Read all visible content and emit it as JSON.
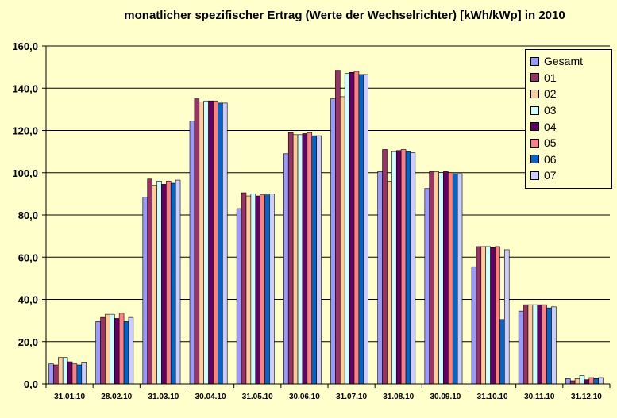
{
  "chart_data": {
    "type": "bar",
    "title": "monatlicher spezifischer Ertrag (Werte der Wechselrichter) [kWh/kWp] in 2010",
    "xlabel": "",
    "ylabel": "",
    "ylim": [
      0,
      160
    ],
    "yticks": [
      "0,0",
      "20,0",
      "40,0",
      "60,0",
      "80,0",
      "100,0",
      "120,0",
      "140,0",
      "160,0"
    ],
    "grid": true,
    "legend_position": "top-right",
    "categories": [
      "31.01.10",
      "28.02.10",
      "31.03.10",
      "30.04.10",
      "31.05.10",
      "30.06.10",
      "31.07.10",
      "31.08.10",
      "30.09.10",
      "31.10.10",
      "30.11.10",
      "31.12.10"
    ],
    "series": [
      {
        "name": "Gesamt",
        "color": "#9999ff",
        "values": [
          9.5,
          29.5,
          88.5,
          124.5,
          83,
          109,
          135,
          100.5,
          92.5,
          55.5,
          34.5,
          2.5
        ]
      },
      {
        "name": "01",
        "color": "#993366",
        "values": [
          9,
          31.5,
          97,
          135,
          90.5,
          119,
          148.5,
          111,
          100.5,
          65,
          37.5,
          1.5
        ]
      },
      {
        "name": "02",
        "color": "#ffcc99",
        "values": [
          12.5,
          33,
          94,
          133.5,
          89,
          118,
          136,
          96,
          100.5,
          65,
          37.5,
          2.5
        ]
      },
      {
        "name": "03",
        "color": "#ccffff",
        "values": [
          12.5,
          33,
          96,
          134,
          90,
          118,
          147,
          110,
          100,
          65,
          37.5,
          4
        ]
      },
      {
        "name": "04",
        "color": "#660066",
        "values": [
          10.5,
          31,
          94.5,
          134,
          89,
          118.5,
          147.5,
          110.5,
          100.5,
          64.5,
          37.5,
          2
        ]
      },
      {
        "name": "05",
        "color": "#ff8080",
        "values": [
          9.5,
          33.5,
          96,
          134,
          89.5,
          119,
          148,
          111,
          100,
          65,
          37.5,
          3
        ]
      },
      {
        "name": "06",
        "color": "#0066cc",
        "values": [
          9,
          29.5,
          95,
          133,
          89.5,
          117.5,
          146.5,
          110,
          99.5,
          30.5,
          36,
          2.5
        ]
      },
      {
        "name": "07",
        "color": "#ccccff",
        "values": [
          10,
          31.5,
          96.5,
          133,
          90,
          117.5,
          146.5,
          109.5,
          99.5,
          63.5,
          36.5,
          3
        ]
      }
    ]
  }
}
